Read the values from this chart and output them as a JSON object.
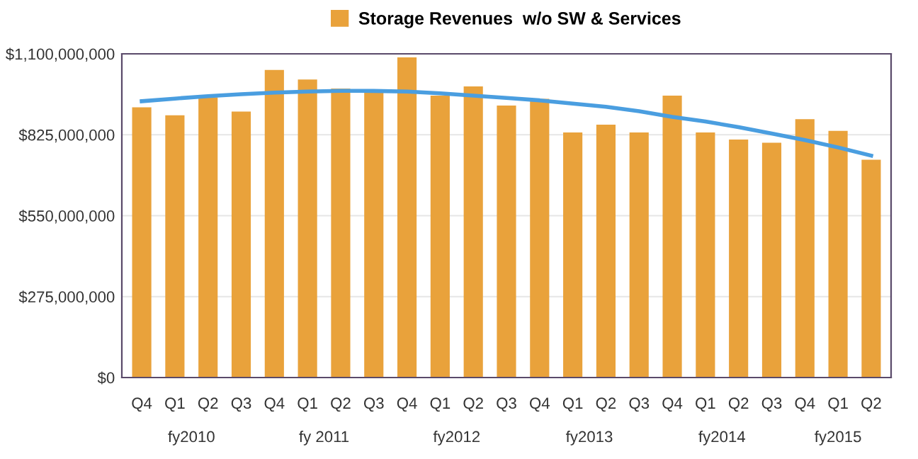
{
  "chart_data": {
    "type": "bar",
    "categories": [
      "Q4",
      "Q1",
      "Q2",
      "Q3",
      "Q4",
      "Q1",
      "Q2",
      "Q3",
      "Q4",
      "Q1",
      "Q2",
      "Q3",
      "Q4",
      "Q1",
      "Q2",
      "Q3",
      "Q4",
      "Q1",
      "Q2",
      "Q3",
      "Q4",
      "Q1",
      "Q2"
    ],
    "series": [
      {
        "name": "Storage Revenues  w/o SW & Services",
        "color": "#e9a23b",
        "values": [
          918000000,
          891000000,
          952000000,
          904000000,
          1045000000,
          1013000000,
          982000000,
          977000000,
          1088000000,
          958000000,
          989000000,
          924000000,
          947000000,
          833000000,
          859000000,
          833000000,
          958000000,
          833000000,
          809000000,
          798000000,
          878000000,
          838000000,
          740000000
        ]
      },
      {
        "type": "line",
        "color": "#4a9ee0",
        "values": [
          939000000,
          948000000,
          956000000,
          963000000,
          968000000,
          972000000,
          974000000,
          974000000,
          972000000,
          966000000,
          958000000,
          950000000,
          942000000,
          931000000,
          920000000,
          905000000,
          886000000,
          870000000,
          851000000,
          829000000,
          807000000,
          782000000,
          754000000
        ]
      }
    ],
    "ylim": [
      0,
      1100000000
    ],
    "yticks": [
      {
        "value": 0,
        "label": "$0"
      },
      {
        "value": 275000000,
        "label": "$275,000,000"
      },
      {
        "value": 550000000,
        "label": "$550,000,000"
      },
      {
        "value": 825000000,
        "label": "$825,000,000"
      },
      {
        "value": 1100000000,
        "label": "$1,100,000,000"
      }
    ],
    "grid": "y",
    "legend": "top",
    "annotations": [
      "fy2010",
      "fy 2011",
      "fy2012",
      "fy2013",
      "fy2014",
      "fy2015"
    ]
  }
}
